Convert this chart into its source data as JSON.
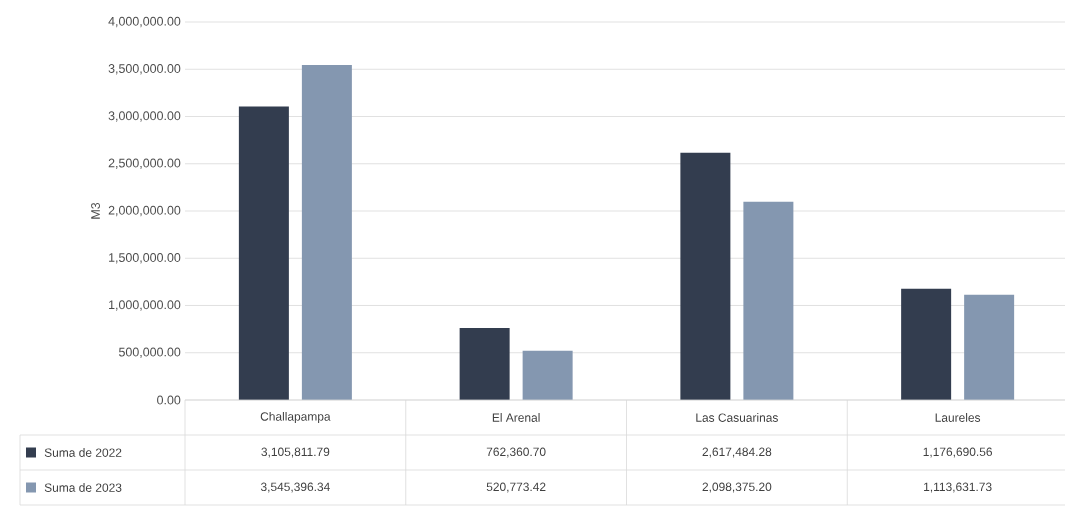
{
  "chart_data": {
    "type": "bar",
    "ylabel": "M3",
    "categories": [
      "Challapampa",
      "El Arenal",
      "Las Casuarinas",
      "Laureles"
    ],
    "series": [
      {
        "name": "Suma de 2022",
        "color": "#333d4f",
        "values": [
          3105811.79,
          762360.7,
          2617484.28,
          1176690.56
        ],
        "value_labels": [
          "3,105,811.79",
          "762,360.70",
          "2,617,484.28",
          "1,176,690.56"
        ]
      },
      {
        "name": "Suma de 2023",
        "color": "#8497b0",
        "values": [
          3545396.34,
          520773.42,
          2098375.2,
          1113631.73
        ],
        "value_labels": [
          "3,545,396.34",
          "520,773.42",
          "2,098,375.20",
          "1,113,631.73"
        ]
      }
    ],
    "ylim": [
      0,
      4000000
    ],
    "yticks": [
      {
        "value": 0,
        "label": "0.00"
      },
      {
        "value": 500000,
        "label": "500,000.00"
      },
      {
        "value": 1000000,
        "label": "1,000,000.00"
      },
      {
        "value": 1500000,
        "label": "1,500,000.00"
      },
      {
        "value": 2000000,
        "label": "2,000,000.00"
      },
      {
        "value": 2500000,
        "label": "2,500,000.00"
      },
      {
        "value": 3000000,
        "label": "3,000,000.00"
      },
      {
        "value": 3500000,
        "label": "3,500,000.00"
      },
      {
        "value": 4000000,
        "label": "4,000,000.00"
      }
    ],
    "grid": "y",
    "legend": "bottom"
  }
}
